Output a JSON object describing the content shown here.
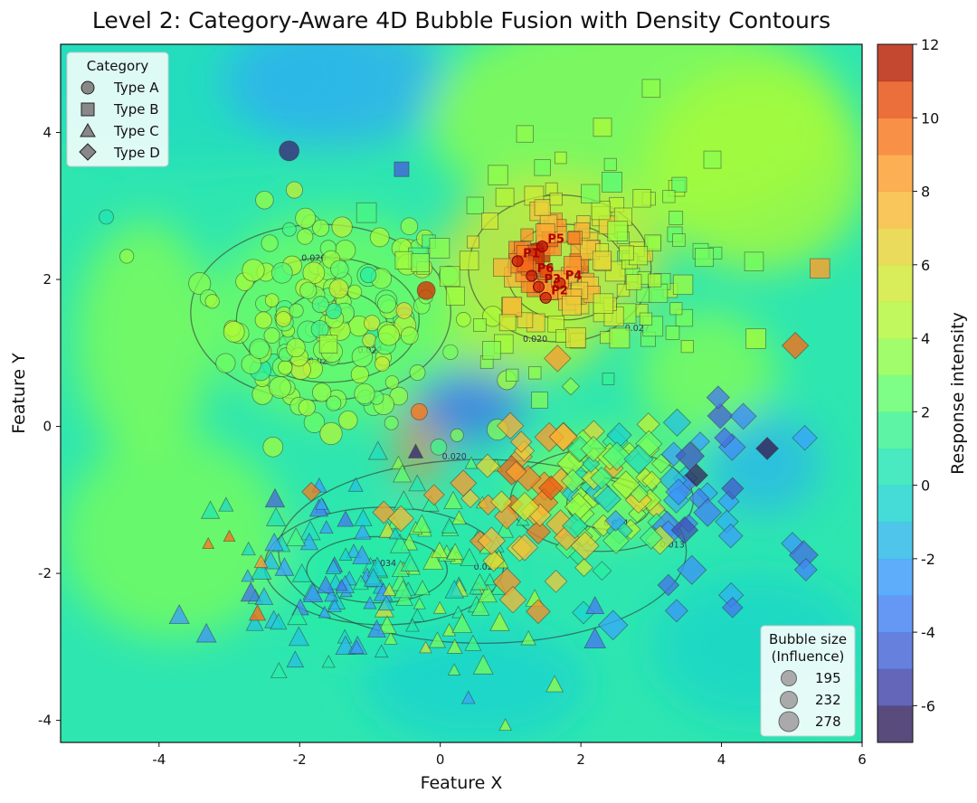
{
  "chart_data": {
    "type": "scatter",
    "title": "Level 2: Category-Aware 4D Bubble Fusion with Density Contours",
    "xlabel": "Feature X",
    "ylabel": "Feature Y",
    "xlim": [
      -5.4,
      6.0
    ],
    "ylim": [
      -4.3,
      5.2
    ],
    "xticks": [
      -4,
      -2,
      0,
      2,
      4,
      6
    ],
    "yticks": [
      -4,
      -2,
      0,
      2,
      4
    ],
    "xtick_labels": [
      "-4",
      "-2",
      "0",
      "2",
      "4",
      "6"
    ],
    "ytick_labels": [
      "-4",
      "-2",
      "0",
      "2",
      "4"
    ],
    "colorbar": {
      "label": "Response intensity",
      "range": [
        -7,
        12
      ],
      "ticks": [
        -6,
        -4,
        -2,
        0,
        2,
        4,
        6,
        8,
        10,
        12
      ],
      "tick_labels": [
        "-6",
        "-4",
        "-2",
        "0",
        "2",
        "4",
        "6",
        "8",
        "10",
        "12"
      ],
      "colormap": "turbo"
    },
    "legend_category": {
      "title": "Category",
      "position": "top-left",
      "entries": [
        {
          "label": "Type A",
          "marker": "circle"
        },
        {
          "label": "Type B",
          "marker": "square"
        },
        {
          "label": "Type C",
          "marker": "triangle"
        },
        {
          "label": "Type D",
          "marker": "diamond"
        }
      ]
    },
    "legend_size": {
      "title_line1": "Bubble size",
      "title_line2": "(Influence)",
      "position": "bottom-right",
      "entries": [
        195,
        232,
        278
      ],
      "entry_labels": [
        "195",
        "232",
        "278"
      ]
    },
    "contour_levels": [
      "0.020",
      "0.027",
      "0.034",
      "0.013"
    ],
    "annotations": [
      "P5",
      "P1",
      "P6",
      "P3",
      "P4",
      "P2"
    ],
    "series": [
      {
        "name": "Type A",
        "marker": "circle",
        "center": [
          -1.5,
          1.45
        ],
        "spread": [
          0.85,
          0.75
        ],
        "n": 150,
        "value_mean": 3.3,
        "value_sd": 0.9
      },
      {
        "name": "Type B",
        "marker": "square",
        "center": [
          1.8,
          2.2
        ],
        "spread": [
          1.0,
          0.7
        ],
        "n": 160,
        "value_mean": 6.0,
        "value_sd": 2.5
      },
      {
        "name": "Type C",
        "marker": "triangle",
        "center": [
          -0.6,
          -2.0
        ],
        "spread": [
          1.1,
          0.7
        ],
        "n": 150,
        "value_mean": 0.8,
        "value_sd": 2.0
      },
      {
        "name": "Type D",
        "marker": "diamond",
        "center": [
          2.3,
          -1.0
        ],
        "spread": [
          1.1,
          0.7
        ],
        "n": 140,
        "value_mean": 2.5,
        "value_sd": 3.0
      }
    ],
    "highlight_points": [
      {
        "label": "P5",
        "x": 1.45,
        "y": 2.45
      },
      {
        "label": "P1",
        "x": 1.1,
        "y": 2.25
      },
      {
        "label": "P6",
        "x": 1.3,
        "y": 2.05
      },
      {
        "label": "P3",
        "x": 1.4,
        "y": 1.9
      },
      {
        "label": "P4",
        "x": 1.7,
        "y": 1.95
      },
      {
        "label": "P2",
        "x": 1.5,
        "y": 1.75
      }
    ],
    "outliers": [
      {
        "x": -2.15,
        "y": 3.75,
        "v": -6.2,
        "m": "circle",
        "s": 1.1
      },
      {
        "x": -4.75,
        "y": 2.85,
        "v": 0.5,
        "m": "circle",
        "s": 0.8
      },
      {
        "x": -0.55,
        "y": 3.5,
        "v": -4.5,
        "m": "square",
        "s": 0.9
      },
      {
        "x": 5.05,
        "y": 1.1,
        "v": 9.8,
        "m": "diamond",
        "s": 1.3
      },
      {
        "x": 5.4,
        "y": 2.15,
        "v": 8.5,
        "m": "square",
        "s": 1.2
      },
      {
        "x": 3.0,
        "y": 4.6,
        "v": 3.5,
        "m": "square",
        "s": 1.1
      },
      {
        "x": -3.3,
        "y": -1.6,
        "v": 9.5,
        "m": "triangle",
        "s": 0.7
      },
      {
        "x": -3.0,
        "y": -1.5,
        "v": 9.8,
        "m": "triangle",
        "s": 0.7
      },
      {
        "x": -2.6,
        "y": -2.55,
        "v": 9.8,
        "m": "triangle",
        "s": 1.0
      },
      {
        "x": -2.55,
        "y": -1.85,
        "v": 8.5,
        "m": "triangle",
        "s": 0.8
      },
      {
        "x": 0.4,
        "y": -3.7,
        "v": -2.0,
        "m": "triangle",
        "s": 0.8
      },
      {
        "x": 2.2,
        "y": -2.45,
        "v": -3.5,
        "m": "triangle",
        "s": 1.1
      },
      {
        "x": 2.2,
        "y": -2.9,
        "v": -3.8,
        "m": "triangle",
        "s": 1.3
      },
      {
        "x": 5.2,
        "y": -1.95,
        "v": -3.2,
        "m": "diamond",
        "s": 1.1
      },
      {
        "x": 4.65,
        "y": -0.3,
        "v": -6.6,
        "m": "diamond",
        "s": 1.1
      },
      {
        "x": -0.35,
        "y": -0.35,
        "v": -6.3,
        "m": "triangle",
        "s": 0.9
      },
      {
        "x": -0.3,
        "y": 0.2,
        "v": 9.5,
        "m": "circle",
        "s": 0.9
      },
      {
        "x": -0.2,
        "y": 1.85,
        "v": 11.0,
        "m": "circle",
        "s": 1.0
      }
    ]
  }
}
